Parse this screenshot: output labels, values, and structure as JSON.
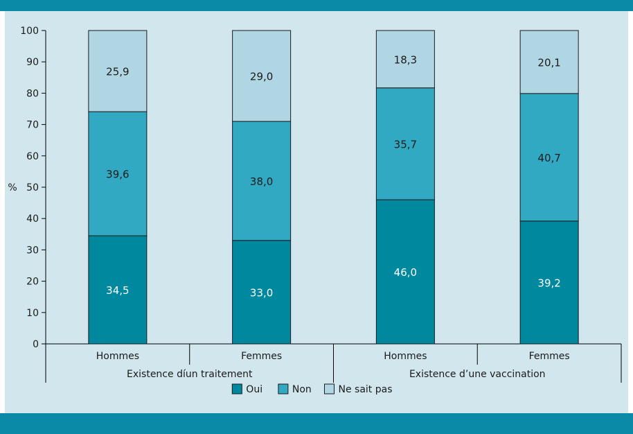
{
  "colors": {
    "band": "#0a8aa6",
    "panel": "#d2e6ee",
    "oui": "#00889f",
    "non": "#31a9c2",
    "ne_sait_pas": "#b0d6e3",
    "axis": "#000000"
  },
  "chart_data": {
    "type": "bar",
    "stacked": true,
    "ylabel": "%",
    "ylim": [
      0,
      100
    ],
    "yticks": [
      0,
      10,
      20,
      30,
      40,
      50,
      60,
      70,
      80,
      90,
      100
    ],
    "categories": [
      "Hommes",
      "Femmes",
      "Hommes",
      "Femmes"
    ],
    "groups": [
      {
        "label": "Existence díun traitement",
        "span": [
          0,
          1
        ]
      },
      {
        "label": "Existence d’une vaccination",
        "span": [
          2,
          3
        ]
      }
    ],
    "series": [
      {
        "name": "Oui",
        "color": "#00889f",
        "label_color": "#ffffff",
        "values": [
          34.5,
          33.0,
          46.0,
          39.2
        ],
        "labels": [
          "34,5",
          "33,0",
          "46,0",
          "39,2"
        ]
      },
      {
        "name": "Non",
        "color": "#31a9c2",
        "label_color": "#1a1a1a",
        "values": [
          39.6,
          38.0,
          35.7,
          40.7
        ],
        "labels": [
          "39,6",
          "38,0",
          "35,7",
          "40,7"
        ]
      },
      {
        "name": "Ne sait pas",
        "color": "#b0d6e3",
        "label_color": "#1a1a1a",
        "values": [
          25.9,
          29.0,
          18.3,
          20.1
        ],
        "labels": [
          "25,9",
          "29,0",
          "18,3",
          "20,1"
        ]
      }
    ],
    "legend": {
      "position": "bottom-center",
      "items": [
        "Oui",
        "Non",
        "Ne sait pas"
      ]
    },
    "grid": false
  }
}
